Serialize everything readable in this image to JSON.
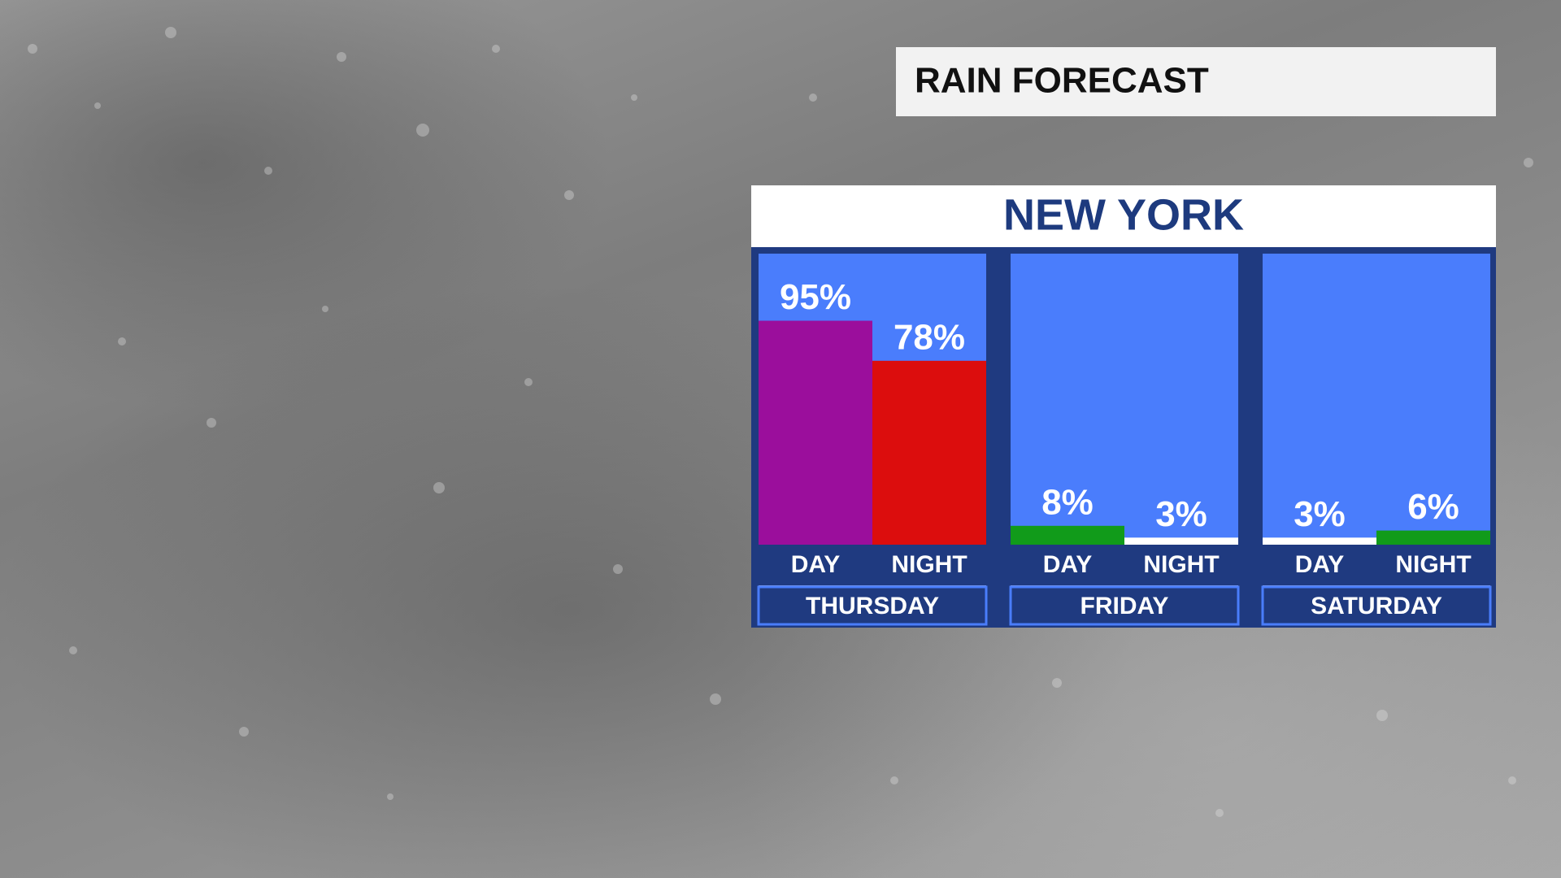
{
  "chart_data": {
    "type": "bar",
    "title": "RAIN FORECAST",
    "subtitle": "NEW YORK",
    "categories": [
      "THURSDAY",
      "FRIDAY",
      "SATURDAY"
    ],
    "ylim": [
      0,
      100
    ],
    "series": [
      {
        "name": "DAY",
        "values": [
          95,
          8,
          3
        ],
        "value_labels": [
          "95%",
          "8%",
          "3%"
        ],
        "colors": [
          "#9b0e9c",
          "#119b1a",
          "#ffffff"
        ]
      },
      {
        "name": "NIGHT",
        "values": [
          78,
          3,
          6
        ],
        "value_labels": [
          "78%",
          "3%",
          "6%"
        ],
        "colors": [
          "#dc0d0d",
          "#ffffff",
          "#119b1a"
        ]
      }
    ]
  }
}
